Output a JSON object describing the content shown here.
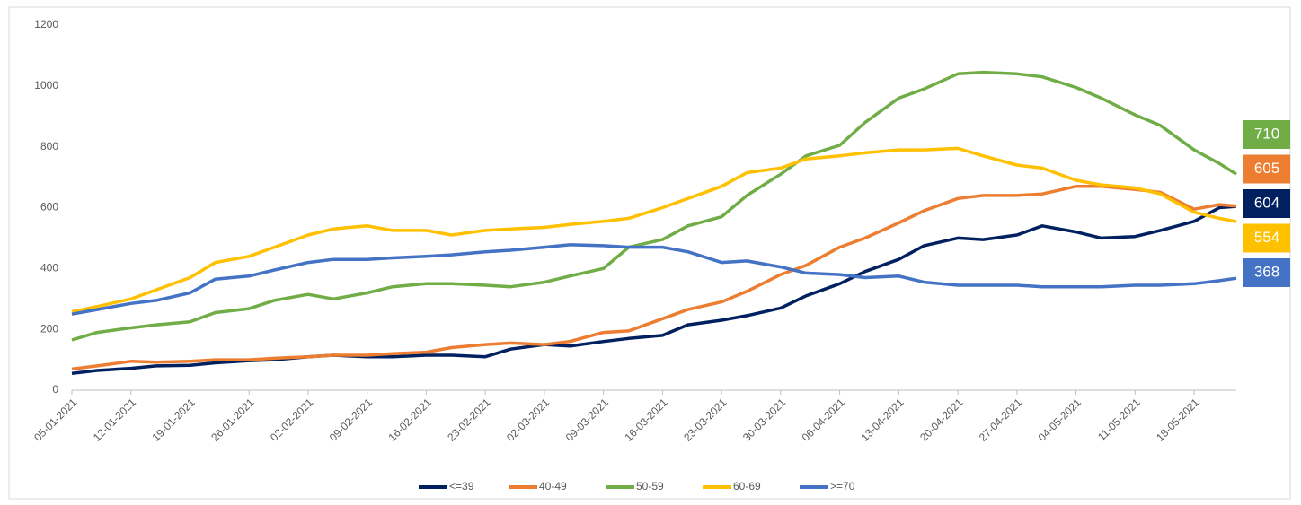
{
  "chart_data": {
    "type": "line",
    "x": [
      "05-01-2021",
      "08-01-2021",
      "12-01-2021",
      "15-01-2021",
      "19-01-2021",
      "22-01-2021",
      "26-01-2021",
      "29-01-2021",
      "02-02-2021",
      "05-02-2021",
      "09-02-2021",
      "12-02-2021",
      "16-02-2021",
      "19-02-2021",
      "23-02-2021",
      "26-02-2021",
      "02-03-2021",
      "05-03-2021",
      "09-03-2021",
      "12-03-2021",
      "16-03-2021",
      "19-03-2021",
      "23-03-2021",
      "26-03-2021",
      "30-03-2021",
      "02-04-2021",
      "06-04-2021",
      "09-04-2021",
      "13-04-2021",
      "16-04-2021",
      "20-04-2021",
      "23-04-2021",
      "27-04-2021",
      "30-04-2021",
      "04-05-2021",
      "07-05-2021",
      "11-05-2021",
      "14-05-2021",
      "18-05-2021",
      "21-05-2021",
      "23-05-2021"
    ],
    "series": [
      {
        "name": "<=39",
        "color": "#002060",
        "values": [
          55,
          65,
          72,
          80,
          82,
          90,
          97,
          100,
          110,
          115,
          110,
          110,
          115,
          115,
          110,
          135,
          150,
          145,
          160,
          170,
          180,
          215,
          230,
          245,
          270,
          310,
          350,
          390,
          430,
          475,
          500,
          495,
          510,
          540,
          520,
          500,
          505,
          525,
          555,
          600,
          604
        ]
      },
      {
        "name": "40-49",
        "color": "#ed7d31",
        "values": [
          70,
          80,
          95,
          92,
          95,
          100,
          100,
          105,
          110,
          115,
          115,
          120,
          125,
          140,
          150,
          155,
          150,
          160,
          190,
          195,
          235,
          265,
          290,
          325,
          380,
          410,
          470,
          500,
          550,
          590,
          630,
          640,
          640,
          645,
          670,
          670,
          660,
          650,
          595,
          610,
          605
        ]
      },
      {
        "name": "50-59",
        "color": "#70ad47",
        "values": [
          165,
          190,
          205,
          215,
          225,
          255,
          268,
          295,
          315,
          300,
          320,
          340,
          350,
          350,
          345,
          340,
          355,
          375,
          400,
          470,
          495,
          540,
          570,
          640,
          710,
          770,
          805,
          880,
          960,
          990,
          1040,
          1045,
          1040,
          1030,
          995,
          960,
          905,
          870,
          790,
          745,
          710
        ]
      },
      {
        "name": "60-69",
        "color": "#ffc000",
        "values": [
          258,
          275,
          300,
          330,
          370,
          420,
          440,
          470,
          510,
          530,
          540,
          525,
          525,
          510,
          525,
          530,
          535,
          545,
          555,
          565,
          600,
          630,
          670,
          715,
          730,
          760,
          770,
          780,
          790,
          790,
          795,
          770,
          740,
          730,
          690,
          675,
          665,
          645,
          585,
          565,
          554
        ]
      },
      {
        "name": ">=70",
        "color": "#4472c4",
        "values": [
          250,
          265,
          285,
          295,
          320,
          365,
          375,
          395,
          420,
          430,
          430,
          435,
          440,
          445,
          455,
          460,
          470,
          478,
          475,
          470,
          470,
          455,
          420,
          425,
          405,
          385,
          380,
          370,
          375,
          355,
          345,
          345,
          345,
          340,
          340,
          340,
          345,
          345,
          350,
          360,
          368
        ]
      }
    ],
    "xlim": [
      "05-01-2021",
      "23-05-2021"
    ],
    "xticks": [
      "05-01-2021",
      "12-01-2021",
      "19-01-2021",
      "26-01-2021",
      "02-02-2021",
      "09-02-2021",
      "16-02-2021",
      "23-02-2021",
      "02-03-2021",
      "09-03-2021",
      "16-03-2021",
      "23-03-2021",
      "30-03-2021",
      "06-04-2021",
      "13-04-2021",
      "20-04-2021",
      "27-04-2021",
      "04-05-2021",
      "11-05-2021",
      "18-05-2021"
    ],
    "ylim": [
      0,
      1200
    ],
    "yticks": [
      0,
      200,
      400,
      600,
      800,
      1000,
      1200
    ],
    "grid": false,
    "legend": "bottom"
  }
}
